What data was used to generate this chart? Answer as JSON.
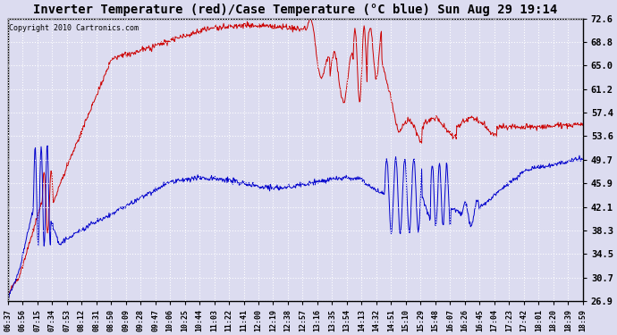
{
  "title": "Inverter Temperature (red)/Case Temperature (°C blue) Sun Aug 29 19:14",
  "copyright": "Copyright 2010 Cartronics.com",
  "ylabel_right": [
    "72.6",
    "68.8",
    "65.0",
    "61.2",
    "57.4",
    "53.6",
    "49.7",
    "45.9",
    "42.1",
    "38.3",
    "34.5",
    "30.7",
    "26.9"
  ],
  "ymin": 26.9,
  "ymax": 72.6,
  "bg_color": "#dcdcf0",
  "plot_bg_color": "#dcdcf0",
  "red_color": "#cc0000",
  "blue_color": "#0000cc",
  "grid_color": "#ffffff",
  "title_fontsize": 10,
  "x_labels": [
    "06:37",
    "06:56",
    "07:15",
    "07:34",
    "07:53",
    "08:12",
    "08:31",
    "08:50",
    "09:09",
    "09:28",
    "09:47",
    "10:06",
    "10:25",
    "10:44",
    "11:03",
    "11:22",
    "11:41",
    "12:00",
    "12:19",
    "12:38",
    "12:57",
    "13:16",
    "13:35",
    "13:54",
    "14:13",
    "14:32",
    "14:51",
    "15:10",
    "15:29",
    "15:48",
    "16:07",
    "16:26",
    "16:45",
    "17:04",
    "17:23",
    "17:42",
    "18:01",
    "18:20",
    "18:39",
    "18:59"
  ]
}
